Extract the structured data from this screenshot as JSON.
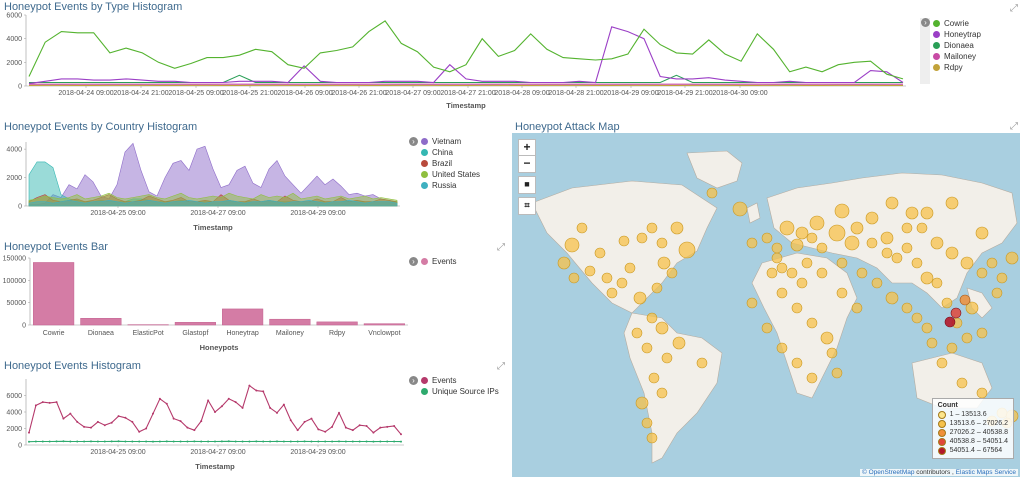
{
  "panels": {
    "type_hist": {
      "title": "Honeypot Events by Type Histogram",
      "xlabel": "Timestamp"
    },
    "country_hist": {
      "title": "Honeypot Events by Country Histogram",
      "xlabel": "Timestamp"
    },
    "events_bar": {
      "title": "Honeypot Events Bar",
      "xlabel": "Honeypots"
    },
    "events_hist": {
      "title": "Honeypot Events Histogram",
      "xlabel": "Timestamp"
    },
    "attack_map": {
      "title": "Honeypot Attack Map"
    }
  },
  "map": {
    "zoom_in": "+",
    "zoom_out": "−",
    "draw_icon": "■",
    "fit_icon": "⌗",
    "legend_title": "Count",
    "legend": [
      {
        "label": "1 – 13513.6",
        "color": "#fde58a"
      },
      {
        "label": "13513.6 – 27026.2",
        "color": "#f7c24b"
      },
      {
        "label": "27026.2 – 40538.8",
        "color": "#f0903a"
      },
      {
        "label": "40538.8 – 54051.4",
        "color": "#e0463a"
      },
      {
        "label": "54051.4 – 67564",
        "color": "#b2182b"
      }
    ],
    "attribution_link": "© OpenStreetMap",
    "attribution_text": " contributors , ",
    "attribution_link2": "Elastic Maps Service"
  },
  "chart_data": [
    {
      "id": "type_hist",
      "type": "line",
      "title": "Honeypot Events by Type Histogram",
      "xlabel": "Timestamp",
      "ylabel": "",
      "ylim": [
        0,
        6000
      ],
      "yticks": [
        0,
        2000,
        4000,
        6000
      ],
      "xticks": [
        "2018-04-24 09:00",
        "2018-04-24 21:00",
        "2018-04-25 09:00",
        "2018-04-25 21:00",
        "2018-04-26 09:00",
        "2018-04-26 21:00",
        "2018-04-27 09:00",
        "2018-04-27 21:00",
        "2018-04-28 09:00",
        "2018-04-28 21:00",
        "2018-04-29 09:00",
        "2018-04-29 21:00",
        "2018-04-30 09:00"
      ],
      "series": [
        {
          "name": "Cowrie",
          "color": "#54b32f",
          "values": [
            800,
            3700,
            4600,
            4500,
            4500,
            2800,
            3200,
            2800,
            2000,
            1500,
            1900,
            2400,
            2400,
            2600,
            3100,
            2900,
            1800,
            1500,
            2800,
            3000,
            3300,
            4600,
            5500,
            3600,
            2900,
            1600,
            1200,
            1800,
            4000,
            2500,
            3000,
            4400,
            3100,
            2400,
            2300,
            2200,
            2300,
            2700,
            4800,
            3500,
            2800,
            2700,
            3900,
            2700,
            2100,
            4400,
            3100,
            1200,
            1600,
            1200,
            1800,
            2000,
            2100,
            1000,
            600
          ]
        },
        {
          "name": "Honeytrap",
          "color": "#9b3fc6",
          "values": [
            200,
            400,
            600,
            600,
            500,
            500,
            600,
            500,
            400,
            400,
            300,
            300,
            300,
            400,
            400,
            400,
            300,
            1700,
            400,
            300,
            300,
            300,
            400,
            400,
            400,
            300,
            1800,
            600,
            400,
            400,
            400,
            300,
            300,
            300,
            400,
            300,
            5000,
            4600,
            4000,
            800,
            600,
            600,
            700,
            500,
            400,
            300,
            300,
            400,
            300,
            300,
            300,
            300,
            1300,
            1200,
            300
          ]
        },
        {
          "name": "Dionaea",
          "color": "#2a9f57",
          "values": [
            300,
            300,
            300,
            300,
            300,
            300,
            300,
            300,
            300,
            300,
            300,
            300,
            300,
            900,
            300,
            300,
            300,
            300,
            300,
            300,
            300,
            300,
            300,
            300,
            300,
            300,
            300,
            300,
            300,
            300,
            300,
            300,
            300,
            300,
            300,
            300,
            300,
            300,
            300,
            300,
            900,
            300,
            300,
            300,
            300,
            300,
            300,
            300,
            300,
            300,
            300,
            300,
            300,
            300,
            300
          ]
        },
        {
          "name": "Mailoney",
          "color": "#c84ba5",
          "values": [
            150,
            150,
            150,
            150,
            150,
            150,
            150,
            150,
            150,
            150,
            150,
            150,
            150,
            150,
            150,
            150,
            150,
            150,
            150,
            150,
            150,
            150,
            150,
            150,
            150,
            150,
            150,
            150,
            150,
            150,
            150,
            150,
            150,
            150,
            150,
            150,
            150,
            150,
            150,
            150,
            150,
            150,
            150,
            150,
            150,
            150,
            150,
            150,
            150,
            150,
            150,
            150,
            150,
            150,
            150
          ]
        },
        {
          "name": "Rdpy",
          "color": "#c2a33a",
          "values": [
            50,
            60,
            60,
            50,
            50,
            60,
            60,
            60,
            50,
            50,
            60,
            60,
            50,
            50,
            60,
            60,
            60,
            50,
            50,
            60,
            60,
            50,
            50,
            60,
            60,
            60,
            50,
            50,
            60,
            60,
            50,
            50,
            60,
            60,
            60,
            50,
            50,
            60,
            60,
            50,
            50,
            60,
            60,
            60,
            50,
            50,
            60,
            60,
            50,
            50,
            60,
            60,
            60,
            50,
            50
          ]
        }
      ]
    },
    {
      "id": "country_hist",
      "type": "area",
      "title": "Honeypot Events by Country Histogram",
      "xlabel": "Timestamp",
      "ylabel": "",
      "ylim": [
        0,
        4500
      ],
      "yticks": [
        0,
        2000,
        4000
      ],
      "xticks": [
        "2018-04-25 09:00",
        "2018-04-27 09:00",
        "2018-04-29 09:00"
      ],
      "series": [
        {
          "name": "Vietnam",
          "color": "#8e6cc9",
          "values": [
            100,
            100,
            200,
            800,
            600,
            1500,
            1200,
            2200,
            1700,
            700,
            500,
            1500,
            3800,
            4400,
            2500,
            1000,
            700,
            2000,
            3000,
            3200,
            2500,
            4000,
            4200,
            2600,
            1300,
            1500,
            2500,
            2800,
            1600,
            1300,
            2600,
            3200,
            2100,
            1500,
            900,
            1500,
            2100,
            1500,
            1900,
            1400,
            800,
            900,
            700,
            800,
            500,
            400,
            300
          ]
        },
        {
          "name": "China",
          "color": "#35b7b2",
          "values": [
            2200,
            3100,
            3100,
            2700,
            800,
            500,
            400,
            300,
            300,
            400,
            300,
            300,
            300,
            500,
            500,
            400,
            300,
            300,
            300,
            400,
            300,
            300,
            300,
            300,
            300,
            300,
            300,
            300,
            300,
            300,
            300,
            300,
            300,
            300,
            300,
            300,
            300,
            300,
            300,
            300,
            300,
            300,
            300,
            300,
            300,
            300,
            300
          ]
        },
        {
          "name": "Brazil",
          "color": "#b84a3c",
          "values": [
            300,
            600,
            800,
            400,
            300,
            400,
            500,
            300,
            400,
            600,
            800,
            500,
            300,
            300,
            400,
            700,
            500,
            300,
            400,
            600,
            300,
            300,
            400,
            300,
            800,
            400,
            300,
            300,
            500,
            300,
            400,
            300,
            700,
            400,
            300,
            300,
            500,
            300,
            300,
            600,
            300,
            400,
            300,
            300,
            500,
            400,
            300
          ]
        },
        {
          "name": "United States",
          "color": "#8fbf3f",
          "values": [
            400,
            500,
            700,
            600,
            500,
            600,
            800,
            500,
            600,
            700,
            900,
            600,
            500,
            600,
            700,
            800,
            600,
            500,
            700,
            900,
            600,
            500,
            600,
            700,
            600,
            900,
            700,
            600,
            500,
            800,
            600,
            700,
            600,
            900,
            500,
            600,
            700,
            500,
            600,
            700,
            500,
            600,
            700,
            500,
            600,
            500,
            400
          ]
        },
        {
          "name": "Russia",
          "color": "#3fb0c0",
          "values": [
            200,
            300,
            300,
            200,
            300,
            400,
            300,
            200,
            300,
            300,
            400,
            300,
            200,
            300,
            300,
            400,
            300,
            200,
            300,
            300,
            400,
            300,
            200,
            300,
            300,
            400,
            300,
            200,
            300,
            300,
            400,
            300,
            200,
            300,
            300,
            400,
            300,
            200,
            300,
            300,
            400,
            300,
            200,
            300,
            300,
            300,
            200
          ]
        }
      ]
    },
    {
      "id": "events_bar",
      "type": "bar",
      "title": "Honeypot Events Bar",
      "xlabel": "Honeypots",
      "ylabel": "",
      "ylim": [
        0,
        150000
      ],
      "yticks": [
        0,
        50000,
        100000,
        150000
      ],
      "categories": [
        "Cowrie",
        "Dionaea",
        "ElasticPot",
        "Glastopf",
        "Honeytrap",
        "Mailoney",
        "Rdpy",
        "Vnclowpot"
      ],
      "series": [
        {
          "name": "Events",
          "color": "#d47ca5",
          "values": [
            140000,
            15000,
            800,
            6000,
            36000,
            13000,
            7000,
            3000
          ]
        }
      ]
    },
    {
      "id": "events_hist",
      "type": "line",
      "title": "Honeypot Events Histogram",
      "xlabel": "Timestamp",
      "ylabel": "",
      "ylim": [
        0,
        8000
      ],
      "yticks": [
        0,
        2000,
        4000,
        6000
      ],
      "xticks": [
        "2018-04-25 09:00",
        "2018-04-27 09:00",
        "2018-04-29 09:00"
      ],
      "series": [
        {
          "name": "Events",
          "color": "#b5396b",
          "values": [
            1500,
            4800,
            5200,
            5100,
            5200,
            3200,
            3800,
            2800,
            2200,
            2100,
            2800,
            2400,
            2700,
            3500,
            3300,
            2800,
            1600,
            2000,
            3800,
            5600,
            5000,
            3200,
            2900,
            2100,
            1800,
            2900,
            5400,
            4000,
            4700,
            5600,
            5200,
            4500,
            7200,
            6600,
            6500,
            4500,
            3900,
            4900,
            3000,
            1800,
            2800,
            3200,
            1900,
            1600,
            2200,
            3900,
            2100,
            1800,
            2400,
            2300,
            1500,
            2100,
            2200,
            2300,
            1300
          ]
        },
        {
          "name": "Unique Source IPs",
          "color": "#2eaa6e",
          "values": [
            400,
            420,
            430,
            420,
            440,
            450,
            430,
            420,
            430,
            440,
            420,
            430,
            440,
            450,
            430,
            420,
            430,
            420,
            410,
            430,
            440,
            430,
            420,
            430,
            440,
            430,
            420,
            430,
            440,
            450,
            430,
            420,
            430,
            440,
            420,
            430,
            440,
            430,
            420,
            430,
            440,
            420,
            430,
            420,
            430,
            440,
            430,
            420,
            430,
            420,
            410,
            420,
            430,
            420,
            410
          ]
        }
      ]
    }
  ]
}
